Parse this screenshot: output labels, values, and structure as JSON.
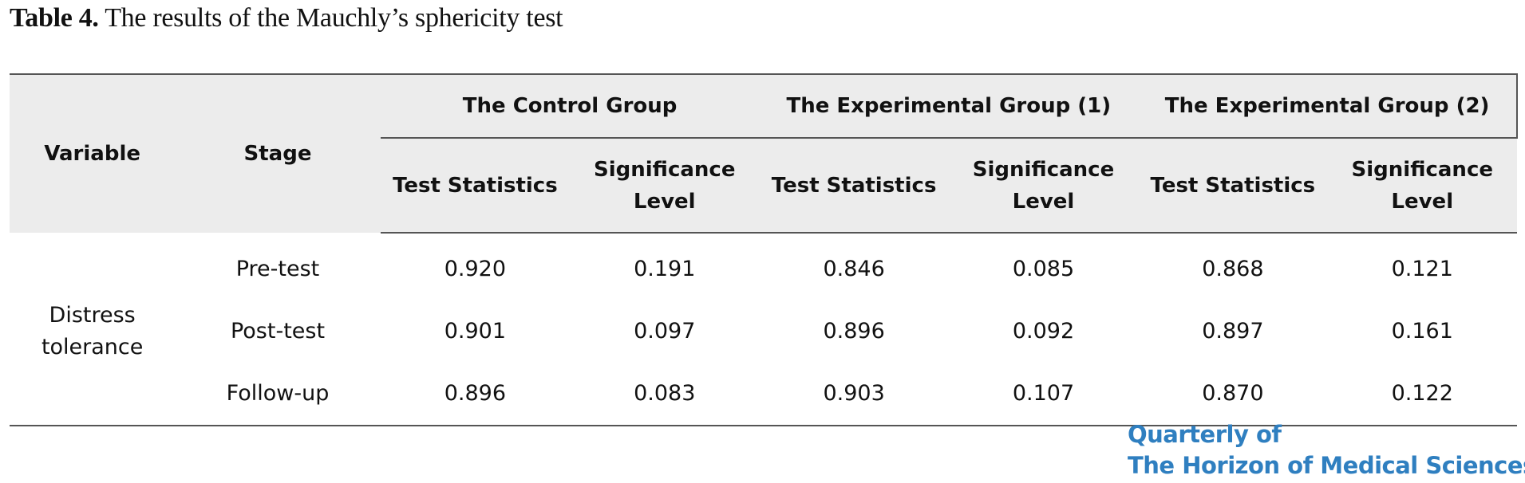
{
  "caption": {
    "label": "Table 4.",
    "text": " The results of the Mauchly’s sphericity test"
  },
  "table": {
    "headers": {
      "variable": "Variable",
      "stage": "Stage",
      "groups": [
        "The Control Group",
        "The Experimental Group (1)",
        "The Experimental Group (2)"
      ],
      "test_statistics": "Test Statistics",
      "significance_line1": "Significance",
      "significance_line2": "Level"
    },
    "variable_line1": "Distress",
    "variable_line2": "tolerance",
    "rows": [
      {
        "stage": "Pre-test",
        "values": [
          "0.920",
          "0.191",
          "0.846",
          "0.085",
          "0.868",
          "0.121"
        ]
      },
      {
        "stage": "Post-test",
        "values": [
          "0.901",
          "0.097",
          "0.896",
          "0.092",
          "0.897",
          "0.161"
        ]
      },
      {
        "stage": "Follow-up",
        "values": [
          "0.896",
          "0.083",
          "0.903",
          "0.107",
          "0.870",
          "0.122"
        ]
      }
    ]
  },
  "logo": {
    "line1": "Quarterly of",
    "line2": "The Horizon of Medical Sciences",
    "color": "#2f7fc0"
  }
}
